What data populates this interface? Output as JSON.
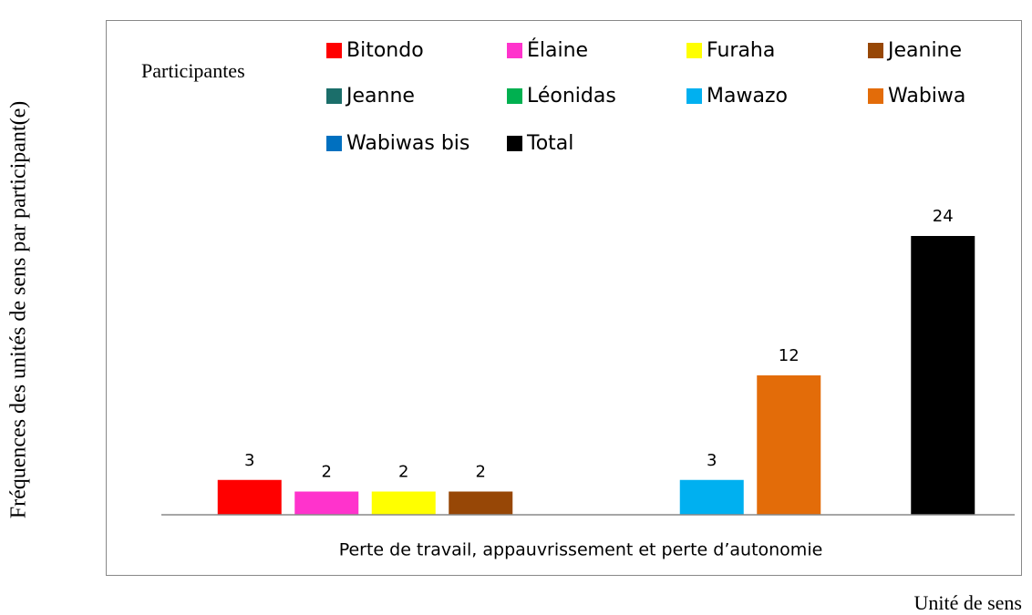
{
  "chart_data": {
    "type": "bar",
    "y_label": "Fréquences des unités de sens par participant(e)",
    "x_label": "Unité de sens",
    "legend_title": "Participantes",
    "categories": [
      "Perte de travail, appauvrissement et perte d’autonomie"
    ],
    "series": [
      {
        "name": "Bitondo",
        "color": "#ff0000",
        "values": [
          3
        ]
      },
      {
        "name": "Élaine",
        "color": "#ff33cc",
        "values": [
          2
        ]
      },
      {
        "name": "Furaha",
        "color": "#ffff00",
        "values": [
          2
        ]
      },
      {
        "name": "Jeanine",
        "color": "#974706",
        "values": [
          2
        ]
      },
      {
        "name": "Jeanne",
        "color": "#1b6e6a",
        "values": [
          null
        ]
      },
      {
        "name": "Léonidas",
        "color": "#00b050",
        "values": [
          null
        ]
      },
      {
        "name": "Mawazo",
        "color": "#00b0f0",
        "values": [
          3
        ]
      },
      {
        "name": "Wabiwa",
        "color": "#e36c09",
        "values": [
          12
        ]
      },
      {
        "name": "Wabiwas bis",
        "color": "#0070c0",
        "values": [
          null
        ]
      },
      {
        "name": "Total",
        "color": "#000000",
        "values": [
          24
        ]
      }
    ],
    "ylim": [
      0,
      30
    ],
    "legend": "top"
  }
}
